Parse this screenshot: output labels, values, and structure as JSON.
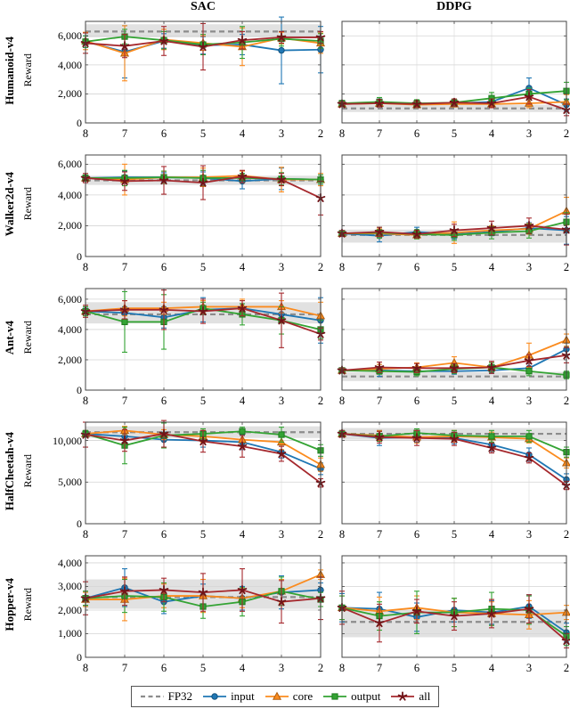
{
  "figure": {
    "column_titles": [
      "SAC",
      "DDPG"
    ],
    "x_ticks": [
      8,
      7,
      6,
      5,
      4,
      3,
      2
    ],
    "colors": {
      "fp32": "#8c8c8c",
      "band": "#c8c8c8",
      "input": "#1f77b4",
      "core": "#fb8b1e",
      "output": "#33a333",
      "all": "#a5282d",
      "grid": "#d4d4d4",
      "frame": "#444444"
    },
    "legend": {
      "items": [
        {
          "label": "FP32",
          "series": "fp32",
          "marker": "dashed"
        },
        {
          "label": "input",
          "series": "input",
          "marker": "circle"
        },
        {
          "label": "core",
          "series": "core",
          "marker": "triangle"
        },
        {
          "label": "output",
          "series": "output",
          "marker": "square"
        },
        {
          "label": "all",
          "series": "all",
          "marker": "star"
        }
      ]
    }
  },
  "chart_data": [
    {
      "type": "line",
      "env": "Humanoid-v4",
      "algo": "SAC",
      "ylabel": "Reward",
      "x": [
        8,
        7,
        6,
        5,
        4,
        3,
        2
      ],
      "ylim": [
        0,
        7000
      ],
      "yticks": [
        0,
        2000,
        4000,
        6000
      ],
      "fp32": {
        "mean": 6300,
        "band": [
          5900,
          6800
        ]
      },
      "series": [
        {
          "name": "input",
          "values": [
            5600,
            4900,
            5650,
            5350,
            5400,
            5000,
            5050
          ],
          "err": [
            400,
            1800,
            500,
            600,
            700,
            2300,
            1600
          ]
        },
        {
          "name": "core",
          "values": [
            5650,
            4800,
            5750,
            5500,
            5250,
            5850,
            5500
          ],
          "err": [
            600,
            1900,
            700,
            500,
            1300,
            400,
            700
          ]
        },
        {
          "name": "output",
          "values": [
            5600,
            5950,
            5700,
            5400,
            5550,
            5800,
            5650
          ],
          "err": [
            400,
            500,
            600,
            700,
            1100,
            500,
            500
          ]
        },
        {
          "name": "all",
          "values": [
            5500,
            5300,
            5650,
            5250,
            5700,
            5900,
            5900
          ],
          "err": [
            700,
            800,
            1000,
            1600,
            600,
            400,
            400
          ]
        }
      ]
    },
    {
      "type": "line",
      "env": "Humanoid-v4",
      "algo": "DDPG",
      "ylabel": "Reward",
      "x": [
        8,
        7,
        6,
        5,
        4,
        3,
        2
      ],
      "ylim": [
        0,
        7000
      ],
      "yticks": [
        0,
        2000,
        4000,
        6000
      ],
      "fp32": {
        "mean": 1000,
        "band": [
          750,
          1250
        ]
      },
      "series": [
        {
          "name": "input",
          "values": [
            1300,
            1400,
            1300,
            1350,
            1450,
            2400,
            1250
          ],
          "err": [
            150,
            250,
            150,
            200,
            300,
            700,
            400
          ]
        },
        {
          "name": "core",
          "values": [
            1300,
            1350,
            1250,
            1300,
            1300,
            1350,
            1450
          ],
          "err": [
            150,
            200,
            150,
            200,
            250,
            300,
            500
          ]
        },
        {
          "name": "output",
          "values": [
            1350,
            1450,
            1350,
            1400,
            1700,
            2000,
            2200
          ],
          "err": [
            200,
            300,
            250,
            250,
            400,
            400,
            600
          ]
        },
        {
          "name": "all",
          "values": [
            1300,
            1350,
            1300,
            1400,
            1350,
            1800,
            900
          ],
          "err": [
            150,
            250,
            200,
            250,
            300,
            500,
            400
          ]
        }
      ]
    },
    {
      "type": "line",
      "env": "Walker2d-v4",
      "algo": "SAC",
      "ylabel": "Reward",
      "x": [
        8,
        7,
        6,
        5,
        4,
        3,
        2
      ],
      "ylim": [
        0,
        6600
      ],
      "yticks": [
        0,
        2000,
        4000,
        6000
      ],
      "fp32": {
        "mean": 4950,
        "band": [
          4650,
          5250
        ]
      },
      "series": [
        {
          "name": "input",
          "values": [
            5100,
            5150,
            5150,
            5100,
            4900,
            5050,
            5000
          ],
          "err": [
            200,
            400,
            300,
            400,
            500,
            700,
            300
          ]
        },
        {
          "name": "core",
          "values": [
            5100,
            5000,
            5150,
            5150,
            5250,
            5000,
            5000
          ],
          "err": [
            200,
            1000,
            400,
            600,
            300,
            800,
            400
          ]
        },
        {
          "name": "output",
          "values": [
            5100,
            5100,
            5150,
            5100,
            5100,
            5050,
            5000
          ],
          "err": [
            200,
            500,
            400,
            500,
            300,
            400,
            300
          ]
        },
        {
          "name": "all",
          "values": [
            5100,
            4900,
            4950,
            4800,
            5200,
            5000,
            3800
          ],
          "err": [
            300,
            600,
            900,
            1100,
            400,
            400,
            1100
          ]
        }
      ]
    },
    {
      "type": "line",
      "env": "Walker2d-v4",
      "algo": "DDPG",
      "ylabel": "Reward",
      "x": [
        8,
        7,
        6,
        5,
        4,
        3,
        2
      ],
      "ylim": [
        0,
        6600
      ],
      "yticks": [
        0,
        2000,
        4000,
        6000
      ],
      "fp32": {
        "mean": 1400,
        "band": [
          900,
          1750
        ]
      },
      "series": [
        {
          "name": "input",
          "values": [
            1500,
            1350,
            1600,
            1450,
            1600,
            1850,
            1700
          ],
          "err": [
            100,
            400,
            300,
            300,
            250,
            350,
            900
          ]
        },
        {
          "name": "core",
          "values": [
            1500,
            1500,
            1400,
            1550,
            1700,
            1800,
            2950
          ],
          "err": [
            150,
            300,
            250,
            700,
            300,
            350,
            900
          ]
        },
        {
          "name": "output",
          "values": [
            1500,
            1550,
            1450,
            1400,
            1550,
            1650,
            2250
          ],
          "err": [
            150,
            350,
            300,
            350,
            400,
            450,
            600
          ]
        },
        {
          "name": "all",
          "values": [
            1500,
            1600,
            1450,
            1700,
            1850,
            2000,
            1750
          ],
          "err": [
            200,
            300,
            250,
            400,
            450,
            500,
            1000
          ]
        }
      ]
    },
    {
      "type": "line",
      "env": "Ant-v4",
      "algo": "SAC",
      "ylabel": "Reward",
      "x": [
        8,
        7,
        6,
        5,
        4,
        3,
        2
      ],
      "ylim": [
        0,
        6700
      ],
      "yticks": [
        0,
        2000,
        4000,
        6000
      ],
      "fp32": {
        "mean": 5000,
        "band": [
          4400,
          5800
        ]
      },
      "series": [
        {
          "name": "input",
          "values": [
            5200,
            5100,
            4800,
            5300,
            5400,
            5000,
            4600
          ],
          "err": [
            200,
            400,
            700,
            800,
            300,
            500,
            1500
          ]
        },
        {
          "name": "core",
          "values": [
            5200,
            5400,
            5400,
            5500,
            5500,
            5500,
            4900
          ],
          "err": [
            300,
            500,
            400,
            400,
            500,
            400,
            900
          ]
        },
        {
          "name": "output",
          "values": [
            5200,
            4500,
            4500,
            5400,
            5000,
            4600,
            4000
          ],
          "err": [
            300,
            2000,
            1800,
            400,
            700,
            900,
            600
          ]
        },
        {
          "name": "all",
          "values": [
            5200,
            5300,
            5300,
            5200,
            5400,
            4600,
            3700
          ],
          "err": [
            400,
            600,
            1300,
            800,
            500,
            1800,
            400
          ]
        }
      ]
    },
    {
      "type": "line",
      "env": "Ant-v4",
      "algo": "DDPG",
      "ylabel": "Reward",
      "x": [
        8,
        7,
        6,
        5,
        4,
        3,
        2
      ],
      "ylim": [
        0,
        6700
      ],
      "yticks": [
        0,
        2000,
        4000,
        6000
      ],
      "fp32": {
        "mean": 900,
        "band": [
          600,
          1200
        ]
      },
      "series": [
        {
          "name": "input",
          "values": [
            1300,
            1300,
            1250,
            1250,
            1300,
            1450,
            2700
          ],
          "err": [
            100,
            400,
            200,
            200,
            200,
            300,
            400
          ]
        },
        {
          "name": "core",
          "values": [
            1300,
            1400,
            1500,
            1800,
            1500,
            2300,
            3300
          ],
          "err": [
            100,
            300,
            300,
            400,
            300,
            800,
            400
          ]
        },
        {
          "name": "output",
          "values": [
            1300,
            1250,
            1200,
            1400,
            1500,
            1250,
            1000
          ],
          "err": [
            100,
            200,
            250,
            300,
            300,
            300,
            250
          ]
        },
        {
          "name": "all",
          "values": [
            1300,
            1500,
            1450,
            1450,
            1500,
            1950,
            2300
          ],
          "err": [
            150,
            350,
            300,
            300,
            400,
            400,
            500
          ]
        }
      ]
    },
    {
      "type": "line",
      "env": "HalfCheetah-v4",
      "algo": "SAC",
      "ylabel": "Reward",
      "x": [
        8,
        7,
        6,
        5,
        4,
        3,
        2
      ],
      "ylim": [
        0,
        12200
      ],
      "yticks": [
        0,
        5000,
        10000
      ],
      "fp32": {
        "mean": 11000,
        "band": [
          10300,
          11700
        ]
      },
      "series": [
        {
          "name": "input",
          "values": [
            10800,
            10500,
            10100,
            10000,
            9800,
            8600,
            6600
          ],
          "err": [
            400,
            700,
            900,
            800,
            900,
            700,
            700
          ]
        },
        {
          "name": "core",
          "values": [
            10800,
            11200,
            10700,
            10500,
            10100,
            9800,
            7100
          ],
          "err": [
            400,
            500,
            600,
            700,
            800,
            900,
            800
          ]
        },
        {
          "name": "output",
          "values": [
            10800,
            9400,
            10600,
            10800,
            11100,
            10700,
            8800
          ],
          "err": [
            400,
            2200,
            1500,
            600,
            500,
            900,
            700
          ]
        },
        {
          "name": "all",
          "values": [
            10700,
            10000,
            10800,
            9900,
            9300,
            8400,
            4900
          ],
          "err": [
            1500,
            1300,
            1600,
            1300,
            1300,
            900,
            500
          ]
        }
      ]
    },
    {
      "type": "line",
      "env": "HalfCheetah-v4",
      "algo": "DDPG",
      "ylabel": "Reward",
      "x": [
        8,
        7,
        6,
        5,
        4,
        3,
        2
      ],
      "ylim": [
        0,
        12200
      ],
      "yticks": [
        0,
        5000,
        10000
      ],
      "fp32": {
        "mean": 10800,
        "band": [
          10100,
          11500
        ]
      },
      "series": [
        {
          "name": "input",
          "values": [
            10800,
            10300,
            10400,
            10300,
            9500,
            8300,
            5300
          ],
          "err": [
            300,
            900,
            600,
            700,
            800,
            800,
            700
          ]
        },
        {
          "name": "core",
          "values": [
            10800,
            10600,
            10400,
            10500,
            10400,
            10200,
            7300
          ],
          "err": [
            300,
            600,
            700,
            700,
            600,
            500,
            600
          ]
        },
        {
          "name": "output",
          "values": [
            10800,
            10500,
            10900,
            10600,
            10500,
            10500,
            8600
          ],
          "err": [
            400,
            600,
            500,
            600,
            700,
            700,
            600
          ]
        },
        {
          "name": "all",
          "values": [
            10800,
            10400,
            10300,
            10200,
            9100,
            7900,
            4600
          ],
          "err": [
            400,
            700,
            900,
            800,
            600,
            600,
            500
          ]
        }
      ]
    },
    {
      "type": "line",
      "env": "Hopper-v4",
      "algo": "SAC",
      "ylabel": "Reward",
      "x": [
        8,
        7,
        6,
        5,
        4,
        3,
        2
      ],
      "ylim": [
        0,
        4300
      ],
      "yticks": [
        0,
        1000,
        2000,
        3000,
        4000
      ],
      "fp32": {
        "mean": 2550,
        "band": [
          2050,
          3300
        ]
      },
      "series": [
        {
          "name": "input",
          "values": [
            2500,
            2950,
            2350,
            2600,
            2500,
            2750,
            2850
          ],
          "err": [
            300,
            800,
            500,
            500,
            500,
            700,
            300
          ]
        },
        {
          "name": "core",
          "values": [
            2450,
            2450,
            2600,
            2600,
            2500,
            2800,
            3500
          ],
          "err": [
            300,
            900,
            500,
            700,
            400,
            500,
            200
          ]
        },
        {
          "name": "output",
          "values": [
            2500,
            2600,
            2550,
            2150,
            2350,
            2800,
            2450
          ],
          "err": [
            300,
            700,
            600,
            500,
            600,
            600,
            300
          ]
        },
        {
          "name": "all",
          "values": [
            2500,
            2800,
            2850,
            2750,
            2850,
            2350,
            2500
          ],
          "err": [
            700,
            600,
            500,
            800,
            900,
            900,
            900
          ]
        }
      ]
    },
    {
      "type": "line",
      "env": "Hopper-v4",
      "algo": "DDPG",
      "ylabel": "Reward",
      "x": [
        8,
        7,
        6,
        5,
        4,
        3,
        2
      ],
      "ylim": [
        0,
        4300
      ],
      "yticks": [
        0,
        1000,
        2000,
        3000,
        4000
      ],
      "fp32": {
        "mean": 1500,
        "band": [
          850,
          2000
        ]
      },
      "series": [
        {
          "name": "input",
          "values": [
            2100,
            2050,
            1700,
            2000,
            1900,
            2150,
            1050
          ],
          "err": [
            600,
            700,
            600,
            500,
            500,
            500,
            400
          ]
        },
        {
          "name": "core",
          "values": [
            2100,
            1950,
            2100,
            1900,
            1850,
            1800,
            1900
          ],
          "err": [
            500,
            600,
            500,
            600,
            500,
            600,
            300
          ]
        },
        {
          "name": "output",
          "values": [
            2100,
            1750,
            1900,
            1900,
            2050,
            2000,
            900
          ],
          "err": [
            500,
            600,
            900,
            600,
            700,
            600,
            400
          ]
        },
        {
          "name": "all",
          "values": [
            2100,
            1450,
            1950,
            1750,
            1850,
            2050,
            700
          ],
          "err": [
            700,
            800,
            500,
            600,
            600,
            600,
            300
          ]
        }
      ]
    }
  ]
}
